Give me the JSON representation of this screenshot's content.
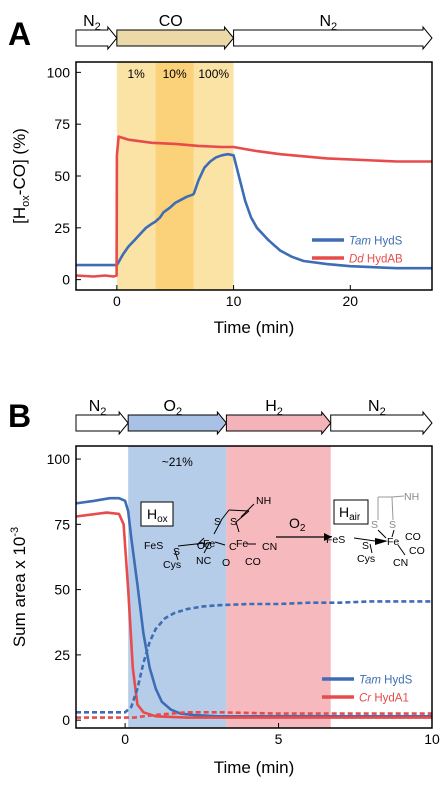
{
  "chart_data": [
    {
      "panel_label": "A",
      "type": "line",
      "xlabel": "Time (min)",
      "ylabel_main": "[H",
      "ylabel_sub": "ox",
      "ylabel_rest": "-CO] (%)",
      "xlim": [
        -3.5,
        27
      ],
      "ylim": [
        -5,
        105
      ],
      "xticks": [
        0,
        10,
        20
      ],
      "yticks": [
        0,
        25,
        50,
        75,
        100
      ],
      "gas_arrows": [
        {
          "label": "N",
          "sub": "2",
          "x0": -3.5,
          "x1": 0,
          "fill": "#ffffff"
        },
        {
          "label": "CO",
          "sub": "",
          "x0": 0,
          "x1": 10,
          "fill": "#ecd9a8"
        },
        {
          "label": "N",
          "sub": "2",
          "x0": 10,
          "x1": 27,
          "fill": "#ffffff"
        }
      ],
      "bands": [
        {
          "label": "1%",
          "x0": 0,
          "x1": 3.3,
          "color": "#fbe3a6"
        },
        {
          "label": "10%",
          "x0": 3.3,
          "x1": 6.6,
          "color": "#fbd27a"
        },
        {
          "label": "100%",
          "x0": 6.6,
          "x1": 10,
          "color": "#fbe3a6"
        }
      ],
      "series": [
        {
          "name_italic": "Tam",
          "name_rest": " HydS",
          "color": "#3e6db5",
          "dashed": false,
          "x": [
            -3.5,
            -1,
            -0.02,
            0,
            0.5,
            1,
            1.5,
            2,
            2.5,
            3,
            3.3,
            3.7,
            4,
            4.5,
            5,
            5.5,
            6,
            6.5,
            6.6,
            7,
            7.5,
            8,
            8.5,
            9,
            9.5,
            10,
            10.5,
            11,
            11.5,
            12,
            13,
            14,
            15,
            16,
            18,
            20,
            22,
            24,
            26,
            27
          ],
          "y": [
            7,
            7,
            7,
            7,
            12,
            16,
            19,
            22,
            25,
            27,
            28,
            30,
            32.5,
            34.5,
            37,
            38.5,
            40,
            41,
            41.5,
            48,
            54,
            57,
            59,
            60,
            60.5,
            60,
            49,
            38,
            30,
            25,
            19,
            14,
            11,
            9,
            7.5,
            6.5,
            6,
            5.5,
            5.5,
            5.5
          ]
        },
        {
          "name_italic": "Dd",
          "name_rest": " HydAB",
          "color": "#e84b4b",
          "dashed": false,
          "x": [
            -3.5,
            -2,
            -1,
            -0.3,
            -0.02,
            0,
            0.15,
            1,
            3,
            5,
            7,
            9,
            10,
            12,
            14,
            16,
            18,
            20,
            22,
            24,
            26,
            27
          ],
          "y": [
            2,
            1.5,
            2,
            1.5,
            2,
            60,
            69,
            67.5,
            66,
            65.5,
            64.5,
            64,
            64,
            62,
            60.5,
            59.5,
            58.5,
            58,
            57.5,
            57,
            57,
            57
          ]
        }
      ]
    },
    {
      "panel_label": "B",
      "type": "line",
      "xlabel": "Time (min)",
      "ylabel_main": "Sum area x 10",
      "ylabel_sup": "-3",
      "xlim": [
        -1.6,
        10
      ],
      "ylim": [
        -3,
        105
      ],
      "xticks": [
        0,
        5,
        10
      ],
      "yticks": [
        0,
        25,
        50,
        75,
        100
      ],
      "gas_arrows": [
        {
          "label": "N",
          "sub": "2",
          "x0": -1.6,
          "x1": 0.1,
          "fill": "#ffffff"
        },
        {
          "label": "O",
          "sub": "2",
          "x0": 0.1,
          "x1": 3.3,
          "fill": "#a9c1e4"
        },
        {
          "label": "H",
          "sub": "2",
          "x0": 3.3,
          "x1": 6.7,
          "fill": "#f3b3b8"
        },
        {
          "label": "N",
          "sub": "2",
          "x0": 6.7,
          "x1": 10,
          "fill": "#ffffff"
        }
      ],
      "bands": [
        {
          "label": "~21%",
          "x0": 0.1,
          "x1": 3.3,
          "color": "#b6cdea"
        },
        {
          "label": "",
          "x0": 3.3,
          "x1": 6.7,
          "color": "#f6babe"
        }
      ],
      "series": [
        {
          "name_italic": "Tam",
          "name_rest": " HydS",
          "color": "#3e6db5",
          "dashed": false,
          "x": [
            -1.6,
            -1,
            -0.5,
            -0.2,
            0,
            0.1,
            0.2,
            0.4,
            0.6,
            0.8,
            1,
            1.2,
            1.5,
            1.8,
            2.2,
            3,
            5,
            7,
            10
          ],
          "y": [
            83,
            84,
            85,
            85,
            84,
            80,
            70,
            52,
            33,
            20,
            12,
            7,
            4,
            2.5,
            2,
            1.5,
            1.5,
            1.5,
            1.5
          ]
        },
        {
          "name_italic": "Cr",
          "name_rest": " HydA1",
          "color": "#e84b4b",
          "dashed": false,
          "x": [
            -1.6,
            -0.6,
            -0.2,
            -0.05,
            0.1,
            0.25,
            0.4,
            0.6,
            1,
            2,
            3,
            5,
            7,
            10
          ],
          "y": [
            78,
            79.5,
            79,
            75,
            50,
            20,
            6,
            3,
            1.5,
            1,
            1,
            1,
            1,
            1
          ]
        },
        {
          "name": "",
          "color": "#3e6db5",
          "dashed": true,
          "x": [
            -1.6,
            -0.5,
            0,
            0.2,
            0.4,
            0.6,
            0.8,
            1,
            1.3,
            1.6,
            2,
            2.5,
            3,
            4,
            5,
            6,
            7,
            8,
            9,
            10
          ],
          "y": [
            3,
            3,
            3,
            5,
            12,
            22,
            30,
            35,
            39,
            41,
            42.5,
            43.5,
            44,
            44.5,
            44.5,
            45,
            45,
            45.5,
            45.5,
            45.5
          ]
        },
        {
          "name": "",
          "color": "#e84b4b",
          "dashed": true,
          "x": [
            -1.6,
            -0.5,
            0,
            0.3,
            0.6,
            1,
            1.5,
            2,
            3,
            5,
            7,
            10
          ],
          "y": [
            1,
            1,
            1,
            1,
            1.5,
            2,
            2.5,
            3,
            3,
            2.5,
            2.5,
            2.5
          ]
        }
      ],
      "scheme": {
        "hox_box": "H",
        "hox_sub": "ox",
        "hair_box": "H",
        "hair_sub": "air",
        "arrow_label": "O",
        "arrow_sub": "2",
        "left_atoms": [
          "OC",
          "FeS",
          "S",
          "Cys",
          "Fe",
          "NC",
          "C",
          "O",
          "Fe",
          "CN",
          "CO",
          "S",
          "S",
          "NH"
        ],
        "right_atoms": [
          "FeS",
          "S",
          "Cys",
          "Fe",
          "CO",
          "CO",
          "CN",
          "S",
          "S",
          "NH"
        ]
      }
    }
  ]
}
